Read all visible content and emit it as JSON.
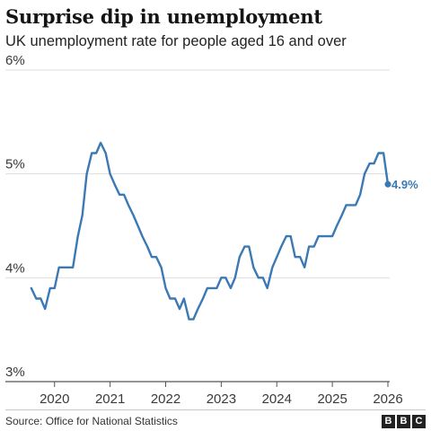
{
  "chart_data": {
    "type": "line",
    "title": "Surprise dip in unemployment",
    "subtitle": "UK unemployment rate for people aged 16 and over",
    "xlabel": "",
    "ylabel": "",
    "ylim": [
      3,
      6
    ],
    "xlim": [
      2019.6,
      2026.0
    ],
    "y_ticks": [
      {
        "value": 6,
        "label": "6%"
      },
      {
        "value": 5,
        "label": "5%"
      },
      {
        "value": 4,
        "label": "4%"
      },
      {
        "value": 3,
        "label": "3%"
      }
    ],
    "x_ticks": [
      {
        "value": 2020,
        "label": "2020"
      },
      {
        "value": 2021,
        "label": "2021"
      },
      {
        "value": 2022,
        "label": "2022"
      },
      {
        "value": 2023,
        "label": "2023"
      },
      {
        "value": 2024,
        "label": "2024"
      },
      {
        "value": 2025,
        "label": "2025"
      },
      {
        "value": 2026,
        "label": "2026"
      }
    ],
    "grid": true,
    "line_color": "#3b79b4",
    "series": [
      {
        "x": [
          2019.58,
          2019.67,
          2019.75,
          2019.83,
          2019.92,
          2020.0,
          2020.08,
          2020.17,
          2020.25,
          2020.33,
          2020.42,
          2020.5,
          2020.58,
          2020.67,
          2020.75,
          2020.83,
          2020.92,
          2021.0,
          2021.08,
          2021.17,
          2021.25,
          2021.33,
          2021.42,
          2021.5,
          2021.58,
          2021.67,
          2021.75,
          2021.83,
          2021.92,
          2022.0,
          2022.08,
          2022.17,
          2022.25,
          2022.33,
          2022.42,
          2022.5,
          2022.58,
          2022.67,
          2022.75,
          2022.83,
          2022.92,
          2023.0,
          2023.08,
          2023.17,
          2023.25,
          2023.33,
          2023.42,
          2023.5,
          2023.58,
          2023.67,
          2023.75,
          2023.83,
          2023.92,
          2024.0,
          2024.08,
          2024.17,
          2024.25,
          2024.33,
          2024.42,
          2024.5,
          2024.58,
          2024.67,
          2024.75,
          2024.83,
          2024.92,
          2025.0,
          2025.08,
          2025.17,
          2025.25,
          2025.33,
          2025.42,
          2025.5,
          2025.58,
          2025.67,
          2025.75,
          2025.83,
          2025.92,
          2026.0
        ],
        "values": [
          3.9,
          3.8,
          3.8,
          3.7,
          3.9,
          3.9,
          4.1,
          4.1,
          4.1,
          4.1,
          4.4,
          4.6,
          5.0,
          5.2,
          5.2,
          5.3,
          5.2,
          5.0,
          4.9,
          4.8,
          4.8,
          4.7,
          4.6,
          4.5,
          4.4,
          4.3,
          4.2,
          4.2,
          4.1,
          3.9,
          3.8,
          3.8,
          3.7,
          3.8,
          3.6,
          3.6,
          3.7,
          3.8,
          3.9,
          3.9,
          3.9,
          4.0,
          4.0,
          3.9,
          4.0,
          4.2,
          4.3,
          4.3,
          4.1,
          4.0,
          4.0,
          3.9,
          4.1,
          4.2,
          4.3,
          4.4,
          4.4,
          4.2,
          4.2,
          4.1,
          4.3,
          4.3,
          4.4,
          4.4,
          4.4,
          4.4,
          4.5,
          4.6,
          4.7,
          4.7,
          4.7,
          4.8,
          5.0,
          5.1,
          5.1,
          5.2,
          5.2,
          4.9
        ]
      }
    ],
    "end_label": "4.9%"
  },
  "footer": {
    "source": "Source: Office for National Statistics",
    "logo": [
      "B",
      "B",
      "C"
    ]
  }
}
